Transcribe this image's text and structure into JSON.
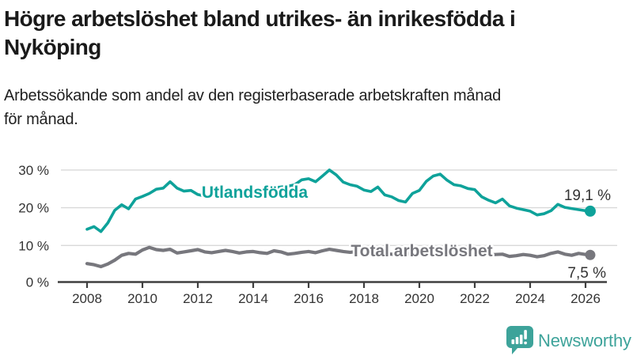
{
  "header": {
    "title": "Högre arbetslöshet bland utrikes- än inrikesfödda i Nyköping",
    "title_lines": [
      "Högre arbetslöshet bland utrikes- än inrikesfödda i",
      "Nyköping"
    ],
    "subtitle": "Arbetssökande som andel av den registerbaserade arbetskraften månad för månad.",
    "subtitle_lines": [
      "Arbetssökande som andel av den registerbaserade arbetskraften månad",
      "för månad."
    ]
  },
  "chart_data": {
    "type": "line",
    "unit": "%",
    "grid": true,
    "legend": "inline labels on lines",
    "ylim": [
      0,
      32
    ],
    "xlim": [
      2008,
      2026.4
    ],
    "x_years": [
      2008.0,
      2008.25,
      2008.5,
      2008.75,
      2009.0,
      2009.25,
      2009.5,
      2009.75,
      2010.0,
      2010.25,
      2010.5,
      2010.75,
      2011.0,
      2011.25,
      2011.5,
      2011.75,
      2012.0,
      2012.25,
      2012.5,
      2012.75,
      2013.0,
      2013.25,
      2013.5,
      2013.75,
      2014.0,
      2014.25,
      2014.5,
      2014.75,
      2015.0,
      2015.25,
      2015.5,
      2015.75,
      2016.0,
      2016.25,
      2016.5,
      2016.75,
      2017.0,
      2017.25,
      2017.5,
      2017.75,
      2018.0,
      2018.25,
      2018.5,
      2018.75,
      2019.0,
      2019.25,
      2019.5,
      2019.75,
      2020.0,
      2020.25,
      2020.5,
      2020.75,
      2021.0,
      2021.25,
      2021.5,
      2021.75,
      2022.0,
      2022.25,
      2022.5,
      2022.75,
      2023.0,
      2023.25,
      2023.5,
      2023.75,
      2024.0,
      2024.25,
      2024.5,
      2024.75,
      2025.0,
      2025.25,
      2025.5,
      2025.75,
      2026.0,
      2026.17
    ],
    "series": [
      {
        "name": "Utlandsfödda",
        "color": "#0ea29a",
        "end_label": "19,1 %",
        "end_value": 19.1,
        "values": [
          14.3,
          15.0,
          13.7,
          16.0,
          19.3,
          20.8,
          19.7,
          22.3,
          23.0,
          23.8,
          24.9,
          25.2,
          26.9,
          25.2,
          24.4,
          24.6,
          23.5,
          23.1,
          23.3,
          23.6,
          23.9,
          24.1,
          24.3,
          24.5,
          24.7,
          24.9,
          25.1,
          25.3,
          25.5,
          25.7,
          26.1,
          27.4,
          27.7,
          26.9,
          28.4,
          30.0,
          28.7,
          26.8,
          26.1,
          25.7,
          24.7,
          24.3,
          25.5,
          23.4,
          22.9,
          21.9,
          21.5,
          23.8,
          24.6,
          27.0,
          28.4,
          28.9,
          27.3,
          26.1,
          25.8,
          25.1,
          24.8,
          22.9,
          22.0,
          21.3,
          22.3,
          20.5,
          19.9,
          19.5,
          19.1,
          18.1,
          18.4,
          19.2,
          20.9,
          20.1,
          19.8,
          19.5,
          19.2,
          19.1
        ]
      },
      {
        "name": "Total arbetslöshet",
        "color": "#77777d",
        "end_label": "7,5 %",
        "end_value": 7.5,
        "values": [
          5.2,
          4.9,
          4.4,
          5.1,
          6.1,
          7.4,
          7.9,
          7.7,
          8.8,
          9.5,
          8.9,
          8.7,
          9.0,
          8.0,
          8.3,
          8.6,
          8.9,
          8.3,
          8.1,
          8.4,
          8.7,
          8.4,
          8.0,
          8.3,
          8.4,
          8.1,
          7.9,
          8.6,
          8.3,
          7.7,
          7.9,
          8.2,
          8.4,
          8.1,
          8.6,
          9.0,
          8.7,
          8.4,
          8.2,
          8.4,
          8.5,
          8.2,
          8.0,
          7.8,
          7.7,
          7.5,
          7.7,
          8.0,
          8.3,
          9.0,
          9.2,
          9.0,
          8.8,
          8.5,
          8.2,
          8.0,
          7.9,
          7.7,
          7.5,
          7.6,
          7.7,
          7.1,
          7.3,
          7.6,
          7.4,
          7.0,
          7.3,
          7.9,
          8.3,
          7.7,
          7.4,
          7.9,
          7.6,
          7.5
        ]
      }
    ],
    "y_ticks": [
      {
        "value": 30,
        "label": "30 %"
      },
      {
        "value": 20,
        "label": "20 %"
      },
      {
        "value": 10,
        "label": "10 %"
      },
      {
        "value": 0,
        "label": "0 %"
      }
    ],
    "x_ticks": [
      {
        "value": 2008,
        "label": "2008"
      },
      {
        "value": 2010,
        "label": "2010"
      },
      {
        "value": 2012,
        "label": "2012"
      },
      {
        "value": 2014,
        "label": "2014"
      },
      {
        "value": 2016,
        "label": "2016"
      },
      {
        "value": 2018,
        "label": "2018"
      },
      {
        "value": 2020,
        "label": "2020"
      },
      {
        "value": 2022,
        "label": "2022"
      },
      {
        "value": 2024,
        "label": "2024"
      },
      {
        "value": 2026,
        "label": "2026"
      }
    ]
  },
  "branding": {
    "wordmark": "Newsworthy",
    "icon": "chart-speech-bubble",
    "color": "#3da39a"
  },
  "colors": {
    "accent_teal": "#0ea29a",
    "series_gray": "#77777d",
    "axis_line": "#3f3f3f",
    "grid_line": "#d9d9d9",
    "tick_text": "#333333",
    "title_text": "#1a1a1a",
    "background": "#ffffff"
  }
}
